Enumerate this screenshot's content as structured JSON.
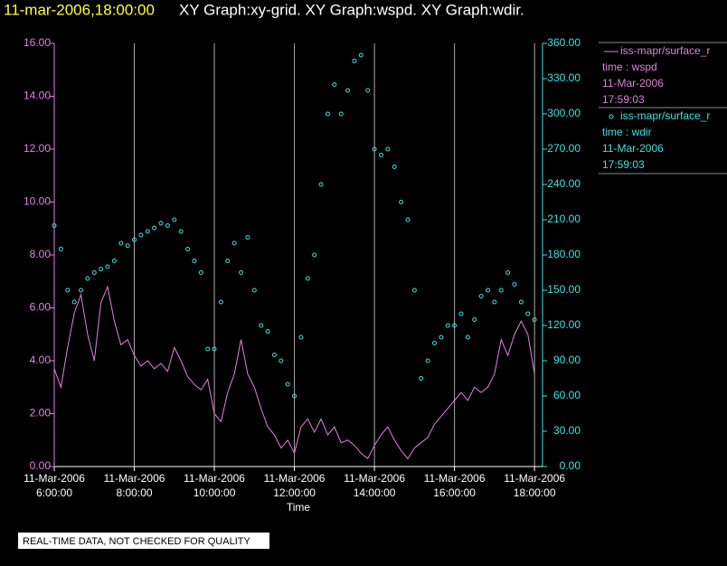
{
  "chart_data": {
    "type": "xy",
    "timestamp": "11-mar-2006,18:00:00",
    "title": "XY Graph:xy-grid.  XY Graph:wspd.  XY Graph:wdir.",
    "xlabel": "Time",
    "footer": "REAL-TIME DATA, NOT CHECKED FOR QUALITY",
    "x": [
      "2006-03-11T06:00",
      "2006-03-11T06:10",
      "2006-03-11T06:20",
      "2006-03-11T06:30",
      "2006-03-11T06:40",
      "2006-03-11T06:50",
      "2006-03-11T07:00",
      "2006-03-11T07:10",
      "2006-03-11T07:20",
      "2006-03-11T07:30",
      "2006-03-11T07:40",
      "2006-03-11T07:50",
      "2006-03-11T08:00",
      "2006-03-11T08:10",
      "2006-03-11T08:20",
      "2006-03-11T08:30",
      "2006-03-11T08:40",
      "2006-03-11T08:50",
      "2006-03-11T09:00",
      "2006-03-11T09:10",
      "2006-03-11T09:20",
      "2006-03-11T09:30",
      "2006-03-11T09:40",
      "2006-03-11T09:50",
      "2006-03-11T10:00",
      "2006-03-11T10:10",
      "2006-03-11T10:20",
      "2006-03-11T10:30",
      "2006-03-11T10:40",
      "2006-03-11T10:50",
      "2006-03-11T11:00",
      "2006-03-11T11:10",
      "2006-03-11T11:20",
      "2006-03-11T11:30",
      "2006-03-11T11:40",
      "2006-03-11T11:50",
      "2006-03-11T12:00",
      "2006-03-11T12:10",
      "2006-03-11T12:20",
      "2006-03-11T12:30",
      "2006-03-11T12:40",
      "2006-03-11T12:50",
      "2006-03-11T13:00",
      "2006-03-11T13:10",
      "2006-03-11T13:20",
      "2006-03-11T13:30",
      "2006-03-11T13:40",
      "2006-03-11T13:50",
      "2006-03-11T14:00",
      "2006-03-11T14:10",
      "2006-03-11T14:20",
      "2006-03-11T14:30",
      "2006-03-11T14:40",
      "2006-03-11T14:50",
      "2006-03-11T15:00",
      "2006-03-11T15:10",
      "2006-03-11T15:20",
      "2006-03-11T15:30",
      "2006-03-11T15:40",
      "2006-03-11T15:50",
      "2006-03-11T16:00",
      "2006-03-11T16:10",
      "2006-03-11T16:20",
      "2006-03-11T16:30",
      "2006-03-11T16:40",
      "2006-03-11T16:50",
      "2006-03-11T17:00",
      "2006-03-11T17:10",
      "2006-03-11T17:20",
      "2006-03-11T17:30",
      "2006-03-11T17:40",
      "2006-03-11T17:50",
      "2006-03-11T18:00"
    ],
    "series": [
      {
        "name": "iss-mapr/surface_r",
        "field": "time : wspd",
        "date": "11-Mar-2006",
        "time": "17:59:03",
        "style": "line",
        "color": "#e080e0",
        "values": [
          3.7,
          3.0,
          4.5,
          5.8,
          6.5,
          5.0,
          4.0,
          6.2,
          6.8,
          5.5,
          4.6,
          4.8,
          4.2,
          3.8,
          4.0,
          3.7,
          3.9,
          3.6,
          4.5,
          4.0,
          3.4,
          3.1,
          2.9,
          3.3,
          2.0,
          1.7,
          2.8,
          3.5,
          4.8,
          3.5,
          3.0,
          2.2,
          1.5,
          1.2,
          0.7,
          1.0,
          0.5,
          1.5,
          1.8,
          1.3,
          1.8,
          1.2,
          1.5,
          0.9,
          1.0,
          0.8,
          0.5,
          0.3,
          0.8,
          1.2,
          1.5,
          1.0,
          0.6,
          0.3,
          0.7,
          0.9,
          1.1,
          1.6,
          1.9,
          2.2,
          2.5,
          2.8,
          2.5,
          3.0,
          2.8,
          3.0,
          3.5,
          4.8,
          4.2,
          5.0,
          5.5,
          5.0,
          3.5
        ]
      },
      {
        "name": "iss-mapr/surface_r",
        "field": "time : wdir",
        "date": "11-Mar-2006",
        "time": "17:59:03",
        "style": "marker",
        "color": "#40e0e0",
        "axis": "y2",
        "values": [
          205,
          185,
          150,
          140,
          150,
          160,
          165,
          168,
          170,
          175,
          190,
          188,
          193,
          197,
          200,
          203,
          207,
          205,
          210,
          200,
          185,
          175,
          165,
          100,
          100,
          140,
          175,
          190,
          165,
          195,
          150,
          120,
          115,
          95,
          90,
          70,
          60,
          110,
          160,
          180,
          240,
          300,
          325,
          300,
          320,
          345,
          350,
          320,
          270,
          265,
          270,
          255,
          225,
          210,
          150,
          75,
          90,
          105,
          110,
          120,
          120,
          130,
          110,
          125,
          145,
          150,
          140,
          150,
          165,
          155,
          140,
          130,
          125
        ]
      }
    ],
    "xlim": [
      "2006-03-11T06:00",
      "2006-03-11T18:12"
    ],
    "xticks": [
      {
        "value": "2006-03-11T06:00",
        "label": "11-Mar-2006\n6:00:00"
      },
      {
        "value": "2006-03-11T08:00",
        "label": "11-Mar-2006\n8:00:00"
      },
      {
        "value": "2006-03-11T10:00",
        "label": "11-Mar-2006\n10:00:00"
      },
      {
        "value": "2006-03-11T12:00",
        "label": "11-Mar-2006\n12:00:00"
      },
      {
        "value": "2006-03-11T14:00",
        "label": "11-Mar-2006\n14:00:00"
      },
      {
        "value": "2006-03-11T16:00",
        "label": "11-Mar-2006\n16:00:00"
      },
      {
        "value": "2006-03-11T18:00",
        "label": "11-Mar-2006\n18:00:00"
      }
    ],
    "ylim": [
      0,
      16
    ],
    "yticks": [
      {
        "value": 0,
        "label": "0.00"
      },
      {
        "value": 2,
        "label": "2.00"
      },
      {
        "value": 4,
        "label": "4.00"
      },
      {
        "value": 6,
        "label": "6.00"
      },
      {
        "value": 8,
        "label": "8.00"
      },
      {
        "value": 10,
        "label": "10.00"
      },
      {
        "value": 12,
        "label": "12.00"
      },
      {
        "value": 14,
        "label": "14.00"
      },
      {
        "value": 16,
        "label": "16.00"
      }
    ],
    "y2lim": [
      0,
      360
    ],
    "y2ticks": [
      {
        "value": 0,
        "label": "0.00"
      },
      {
        "value": 30,
        "label": "30.00"
      },
      {
        "value": 60,
        "label": "60.00"
      },
      {
        "value": 90,
        "label": "90.00"
      },
      {
        "value": 120,
        "label": "120.00"
      },
      {
        "value": 150,
        "label": "150.00"
      },
      {
        "value": 180,
        "label": "180.00"
      },
      {
        "value": 210,
        "label": "210.00"
      },
      {
        "value": 240,
        "label": "240.00"
      },
      {
        "value": 270,
        "label": "270.00"
      },
      {
        "value": 300,
        "label": "300.00"
      },
      {
        "value": 330,
        "label": "330.00"
      },
      {
        "value": 360,
        "label": "360.00"
      }
    ],
    "grid": true
  }
}
